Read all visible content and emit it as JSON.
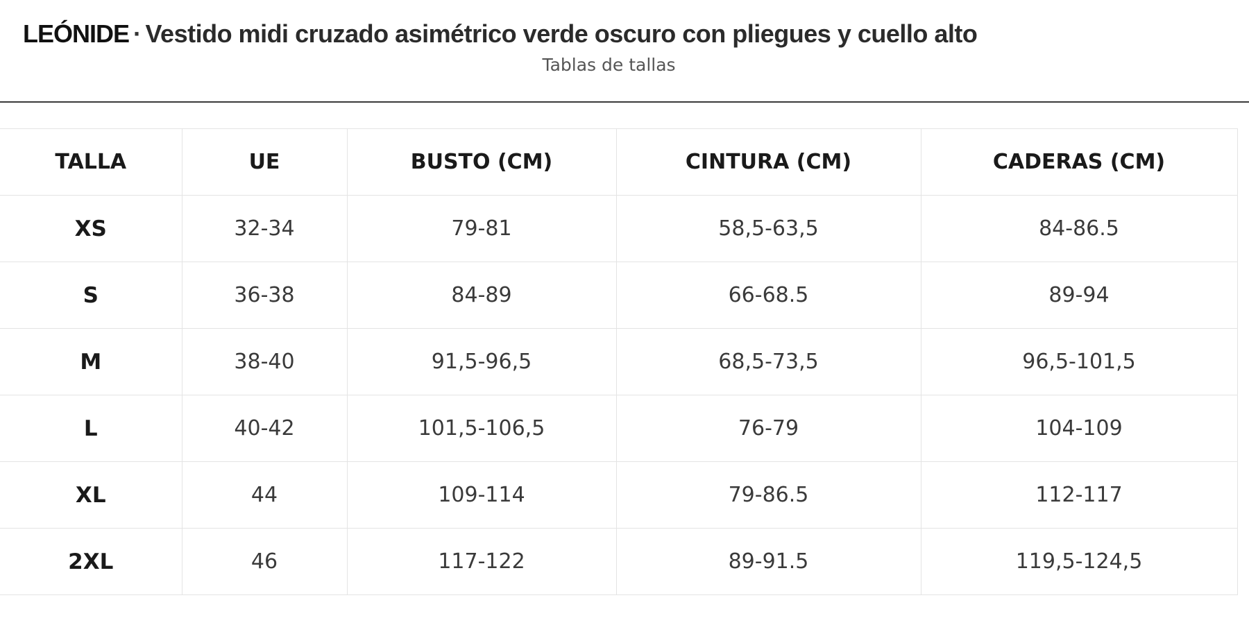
{
  "header": {
    "brand": "LEÓNIDE",
    "separator": "·",
    "product_name": "Vestido midi cruzado asimétrico verde oscuro con pliegues y cuello alto",
    "subtitle": "Tablas de tallas"
  },
  "size_table": {
    "columns": [
      "TALLA",
      "UE",
      "BUSTO (CM)",
      "CINTURA (CM)",
      "CADERAS (CM)"
    ],
    "rows": [
      [
        "XS",
        "32-34",
        "79-81",
        "58,5-63,5",
        "84-86.5"
      ],
      [
        "S",
        "36-38",
        "84-89",
        "66-68.5",
        "89-94"
      ],
      [
        "M",
        "38-40",
        "91,5-96,5",
        "68,5-73,5",
        "96,5-101,5"
      ],
      [
        "L",
        "40-42",
        "101,5-106,5",
        "76-79",
        "104-109"
      ],
      [
        "XL",
        "44",
        "109-114",
        "79-86.5",
        "112-117"
      ],
      [
        "2XL",
        "46",
        "117-122",
        "89-91.5",
        "119,5-124,5"
      ]
    ]
  }
}
